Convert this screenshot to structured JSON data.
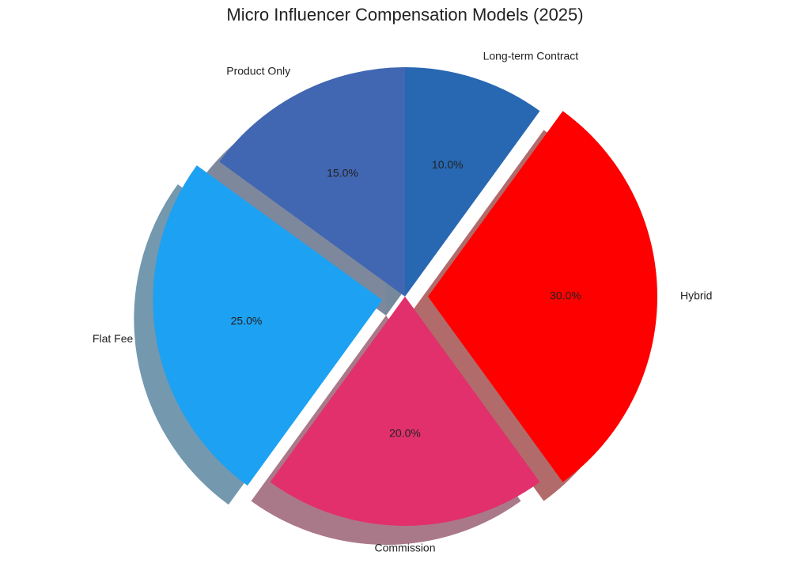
{
  "chart_data": {
    "type": "pie",
    "title": "Micro Influencer Compensation Models (2025)",
    "categories": [
      "Product Only",
      "Flat Fee",
      "Commission",
      "Hybrid",
      "Long-term Contract"
    ],
    "values": [
      15,
      25,
      20,
      30,
      10
    ],
    "value_labels": [
      "15.0%",
      "25.0%",
      "20.0%",
      "30.0%",
      "10.0%"
    ],
    "colors": [
      "#4267b2",
      "#1da1f2",
      "#e1306c",
      "#ff0000",
      "#2867b2"
    ],
    "explode": [
      0,
      0.1,
      0,
      0.1,
      0
    ],
    "shadow": true
  }
}
